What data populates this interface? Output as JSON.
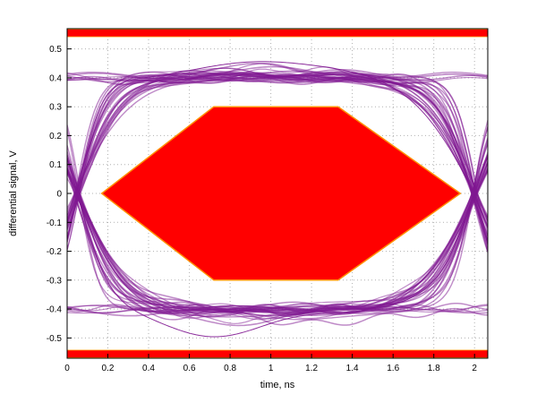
{
  "figure": {
    "background": "#ffffff"
  },
  "chart_data": {
    "type": "line",
    "subtype": "eye-diagram-with-compliance-mask",
    "title": "",
    "xlabel": "time, ns",
    "ylabel": "differential signal, V",
    "xlim": [
      0,
      2.065
    ],
    "ylim": [
      -0.57,
      0.57
    ],
    "xticks": [
      "0",
      "0.2",
      "0.4",
      "0.6",
      "0.8",
      "1",
      "1.2",
      "1.4",
      "1.6",
      "1.8",
      "2"
    ],
    "yticks": [
      "-0.5",
      "-0.4",
      "-0.3",
      "-0.2",
      "-0.1",
      "0",
      "0.1",
      "0.2",
      "0.3",
      "0.4",
      "0.5"
    ],
    "grid": true,
    "grid_color": "#b0b0b0",
    "frame_color": "#000000",
    "eye": {
      "trace_color": "#7f1791",
      "high_level_v": 0.4,
      "low_level_v": -0.4,
      "overshoot_max_v": 0.46,
      "undershoot_min_v": -0.5,
      "left_crossing_ns": 0.05,
      "right_crossing_ns": 2.0,
      "num_traces": 64
    },
    "mask": {
      "fill": "#ff0000",
      "stroke": "#ff9000",
      "center_polygon": [
        [
          0.17,
          0
        ],
        [
          0.72,
          0.3
        ],
        [
          1.33,
          0.3
        ],
        [
          1.93,
          0
        ],
        [
          1.33,
          -0.3
        ],
        [
          0.72,
          -0.3
        ]
      ],
      "top_bar_v": [
        0.542,
        0.568
      ],
      "bottom_bar_v": [
        -0.568,
        -0.542
      ]
    }
  }
}
